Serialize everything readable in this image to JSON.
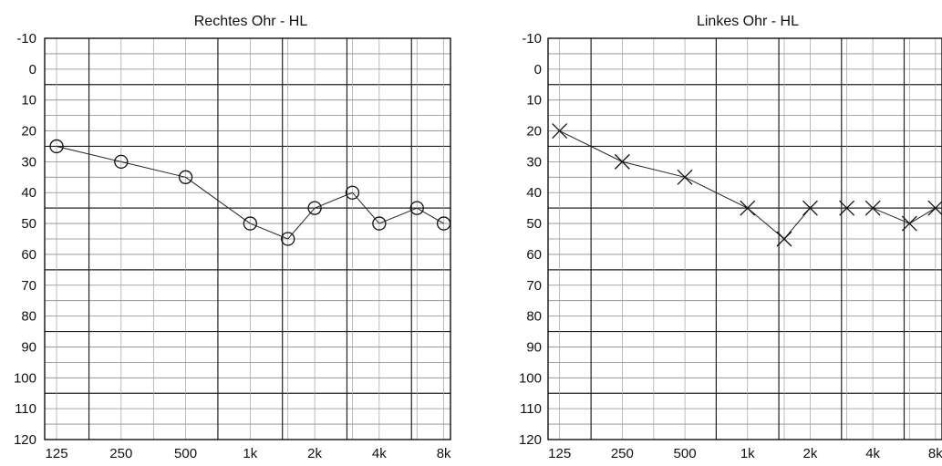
{
  "chart_data": [
    {
      "type": "line",
      "title": "Rechtes Ohr - HL",
      "xlabel": "",
      "ylabel": "",
      "ylim": [
        -10,
        120
      ],
      "y_inverted": true,
      "y_ticks": [
        "-10",
        "0",
        "10",
        "20",
        "30",
        "40",
        "50",
        "60",
        "70",
        "80",
        "90",
        "100",
        "110",
        "120"
      ],
      "x_ticks": [
        "125",
        "250",
        "500",
        "1k",
        "2k",
        "4k",
        "8k"
      ],
      "x_tick_hz": [
        125,
        250,
        500,
        1000,
        2000,
        4000,
        8000
      ],
      "grid": true,
      "marker": "circle",
      "series": [
        {
          "x": [
            125,
            250,
            500,
            1000,
            1500,
            2000,
            3000,
            4000,
            6000,
            8000
          ],
          "values": [
            25,
            30,
            35,
            50,
            55,
            45,
            40,
            50,
            45,
            50
          ],
          "connect": [
            true,
            true,
            true,
            true,
            true,
            true,
            true,
            true,
            true
          ]
        }
      ]
    },
    {
      "type": "line",
      "title": "Linkes Ohr - HL",
      "xlabel": "",
      "ylabel": "",
      "ylim": [
        -10,
        120
      ],
      "y_inverted": true,
      "y_ticks": [
        "-10",
        "0",
        "10",
        "20",
        "30",
        "40",
        "50",
        "60",
        "70",
        "80",
        "90",
        "100",
        "110",
        "120"
      ],
      "x_ticks": [
        "125",
        "250",
        "500",
        "1k",
        "2k",
        "4k",
        "8k"
      ],
      "x_tick_hz": [
        125,
        250,
        500,
        1000,
        2000,
        4000,
        8000
      ],
      "grid": true,
      "marker": "cross",
      "series": [
        {
          "x": [
            125,
            250,
            500,
            1000,
            1500,
            2000,
            3000,
            4000,
            6000,
            8000
          ],
          "values": [
            20,
            30,
            35,
            45,
            55,
            45,
            45,
            45,
            50,
            45
          ],
          "connect": [
            true,
            true,
            true,
            true,
            true,
            false,
            false,
            true,
            true
          ]
        }
      ]
    }
  ]
}
